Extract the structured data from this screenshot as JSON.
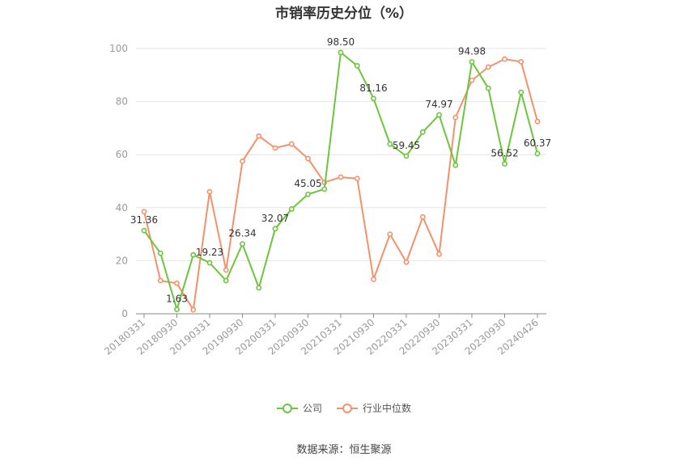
{
  "title": "市销率历史分位（%）",
  "source": "数据来源：恒生聚源",
  "colors": {
    "company": "#6cc53d",
    "industry": "#f5916a",
    "axis": "#888888",
    "grid": "#e6e6e6",
    "label": "#333333",
    "tick": "#999999"
  },
  "chart_data": {
    "type": "line",
    "title": "市销率历史分位（%）",
    "ylim": [
      0,
      100
    ],
    "yticks": [
      0,
      20,
      40,
      60,
      80,
      100
    ],
    "x_tick_labels": [
      "20180331",
      "20180930",
      "20190331",
      "20190930",
      "20200331",
      "20200930",
      "20210331",
      "20210930",
      "20220331",
      "20220930",
      "20230331",
      "20230930",
      "20240426"
    ],
    "grid": "horizontal",
    "legend_position": "bottom",
    "series": [
      {
        "name": "公司",
        "values": [
          31.36,
          22.8,
          1.63,
          22.2,
          19.23,
          12.5,
          26.34,
          9.8,
          32.07,
          39.5,
          45.05,
          47.0,
          98.5,
          93.5,
          81.16,
          64.0,
          59.45,
          68.5,
          74.97,
          56.0,
          94.98,
          85.0,
          56.52,
          83.5,
          60.37
        ],
        "labels": {
          "0": "31.36",
          "2": "1.63",
          "4": "19.23",
          "6": "26.34",
          "8": "32.07",
          "10": "45.05",
          "12": "98.50",
          "14": "81.16",
          "16": "59.45",
          "18": "74.97",
          "20": "94.98",
          "22": "56.52",
          "24": "60.37"
        }
      },
      {
        "name": "行业中位数",
        "values": [
          38.5,
          12.5,
          11.5,
          1.5,
          46.0,
          16.5,
          57.5,
          67.0,
          62.5,
          64.0,
          58.5,
          49.5,
          51.5,
          51.0,
          13.0,
          30.0,
          19.5,
          36.5,
          22.5,
          74.0,
          88.0,
          93.0,
          96.0,
          95.0,
          72.5
        ]
      }
    ]
  },
  "legend": [
    {
      "key": "company",
      "label": "公司"
    },
    {
      "key": "industry",
      "label": "行业中位数"
    }
  ]
}
